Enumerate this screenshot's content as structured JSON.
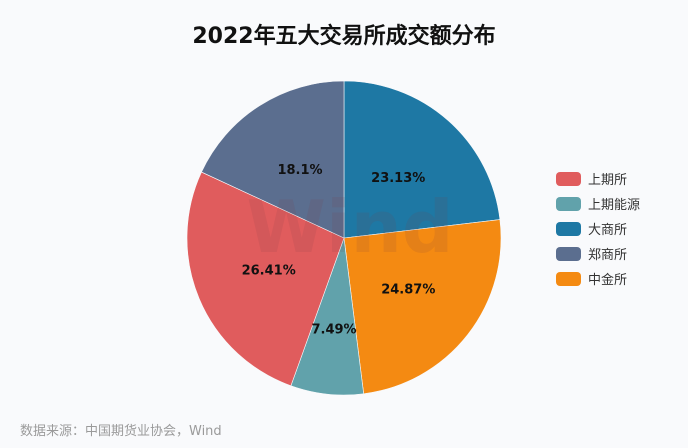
{
  "chart_data": {
    "type": "pie",
    "title": "2022年五大交易所成交额分布",
    "categories": [
      "大商所",
      "中金所",
      "上期能源",
      "上期所",
      "郑商所"
    ],
    "values": [
      23.13,
      24.87,
      7.49,
      26.41,
      18.1
    ],
    "labels": [
      "23.13%",
      "24.87%",
      "7.49%",
      "26.41%",
      "18.1%"
    ],
    "colors": [
      "#1e78a4",
      "#f48a12",
      "#61a2ab",
      "#e05c5d",
      "#5b6e8f"
    ],
    "start_angle": "12 o'clock, clockwise",
    "legend_position": "right",
    "legend_order": [
      "上期所",
      "上期能源",
      "大商所",
      "郑商所",
      "中金所"
    ],
    "legend_colors": [
      "#e05c5d",
      "#61a2ab",
      "#1e78a4",
      "#5b6e8f",
      "#f48a12"
    ],
    "source": "数据来源：中国期货业协会，Wind"
  },
  "header": {
    "title": "2022年五大交易所成交额分布"
  },
  "legend": {
    "items": [
      {
        "label": "上期所",
        "color": "#e05c5d"
      },
      {
        "label": "上期能源",
        "color": "#61a2ab"
      },
      {
        "label": "大商所",
        "color": "#1e78a4"
      },
      {
        "label": "郑商所",
        "color": "#5b6e8f"
      },
      {
        "label": "中金所",
        "color": "#f48a12"
      }
    ]
  },
  "watermark": "Wind",
  "footer": {
    "source": "数据来源：中国期货业协会，Wind"
  }
}
